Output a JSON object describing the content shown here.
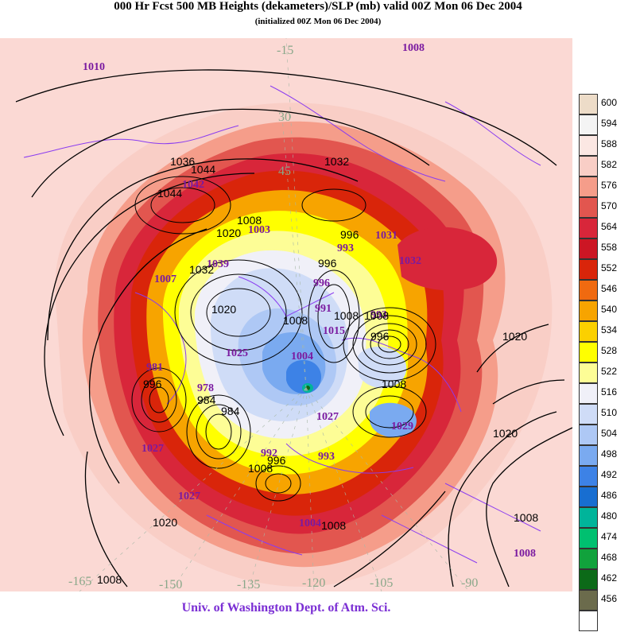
{
  "title": "000 Hr Fcst 500 MB Heights (dekameters)/SLP (mb) valid 00Z Mon 06 Dec 2004",
  "subtitle": "(initialized 00Z Mon 06 Dec 2004)",
  "credit": "Univ. of Washington Dept. of Atm. Sci.",
  "colors": {
    "coastlines": "#8a3cf0",
    "contours": "#000000",
    "slp_labels": "#7a1aa0",
    "lon_labels": "#8aa88a",
    "map_background": "#fbd9d4"
  },
  "colorbar": [
    {
      "label": "600",
      "color": "#eddcc8"
    },
    {
      "label": "594",
      "color": "#f4f4f4"
    },
    {
      "label": "588",
      "color": "#fbe7e3"
    },
    {
      "label": "582",
      "color": "#f9cec6"
    },
    {
      "label": "576",
      "color": "#f59d8a"
    },
    {
      "label": "570",
      "color": "#e2564f"
    },
    {
      "label": "564",
      "color": "#d8263a"
    },
    {
      "label": "558",
      "color": "#cc1624"
    },
    {
      "label": "552",
      "color": "#d9250a"
    },
    {
      "label": "546",
      "color": "#f06a10"
    },
    {
      "label": "540",
      "color": "#f7a400"
    },
    {
      "label": "534",
      "color": "#fbd000"
    },
    {
      "label": "528",
      "color": "#ffff00"
    },
    {
      "label": "522",
      "color": "#fdfd96"
    },
    {
      "label": "516",
      "color": "#f0f0f8"
    },
    {
      "label": "510",
      "color": "#cfdcf7"
    },
    {
      "label": "504",
      "color": "#aec8f5"
    },
    {
      "label": "498",
      "color": "#7aaaf0"
    },
    {
      "label": "492",
      "color": "#3d82e6"
    },
    {
      "label": "486",
      "color": "#186ed1"
    },
    {
      "label": "480",
      "color": "#00b49a"
    },
    {
      "label": "474",
      "color": "#00c070"
    },
    {
      "label": "468",
      "color": "#11a23c"
    },
    {
      "label": "462",
      "color": "#0c6a18"
    },
    {
      "label": "456",
      "color": "#6b6b4c"
    },
    {
      "label": "",
      "color": "#ffffff"
    }
  ],
  "longitude_labels": [
    {
      "text": "-165"
    },
    {
      "text": "-150"
    },
    {
      "text": "-135"
    },
    {
      "text": "-120"
    },
    {
      "text": "-105"
    },
    {
      "text": "-90"
    },
    {
      "text": "-15"
    },
    {
      "text": "30"
    },
    {
      "text": "45"
    }
  ],
  "slp_labels": [
    {
      "text": "1010"
    },
    {
      "text": "1008"
    },
    {
      "text": "1042"
    },
    {
      "text": "1003"
    },
    {
      "text": "1031"
    },
    {
      "text": "1032"
    },
    {
      "text": "1039"
    },
    {
      "text": "1007"
    },
    {
      "text": "993"
    },
    {
      "text": "996"
    },
    {
      "text": "991"
    },
    {
      "text": "1015"
    },
    {
      "text": "1004"
    },
    {
      "text": "1025"
    },
    {
      "text": "981"
    },
    {
      "text": "978"
    },
    {
      "text": "1027"
    },
    {
      "text": "1029"
    },
    {
      "text": "993"
    },
    {
      "text": "1027"
    },
    {
      "text": "1027"
    },
    {
      "text": "992"
    },
    {
      "text": "993"
    },
    {
      "text": "1004"
    },
    {
      "text": "1008"
    }
  ],
  "contour_labels": [
    {
      "text": "1036"
    },
    {
      "text": "1044"
    },
    {
      "text": "1044"
    },
    {
      "text": "1032"
    },
    {
      "text": "1020"
    },
    {
      "text": "1008"
    },
    {
      "text": "1032"
    },
    {
      "text": "996"
    },
    {
      "text": "1020"
    },
    {
      "text": "996"
    },
    {
      "text": "1008"
    },
    {
      "text": "1008"
    },
    {
      "text": "996"
    },
    {
      "text": "1020"
    },
    {
      "text": "1008"
    },
    {
      "text": "1008"
    },
    {
      "text": "996"
    },
    {
      "text": "984"
    },
    {
      "text": "984"
    },
    {
      "text": "996"
    },
    {
      "text": "1008"
    },
    {
      "text": "1008"
    },
    {
      "text": "1020"
    },
    {
      "text": "1020"
    },
    {
      "text": "1008"
    },
    {
      "text": "1008"
    }
  ]
}
